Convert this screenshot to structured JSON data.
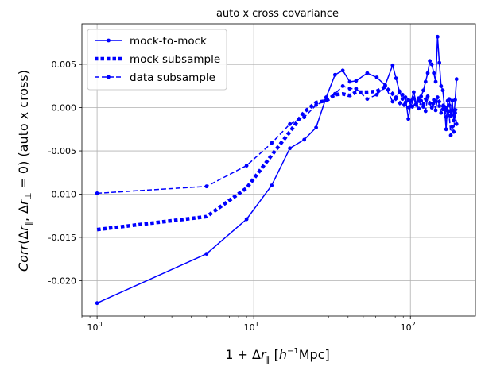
{
  "chart_data": {
    "type": "line",
    "title": "auto x cross covariance",
    "xlabel": "1 + Δr∥ [h⁻¹Mpc]",
    "ylabel": "Corr(Δr∥, Δr⊥ = 0) (auto x  cross)",
    "xscale": "log",
    "xlim": [
      0.8,
      260
    ],
    "ylim": [
      -0.0241,
      0.0097
    ],
    "grid": true,
    "legend_position": "upper-left",
    "x_ticks": [
      {
        "value": 1,
        "base": "10",
        "exp": "0"
      },
      {
        "value": 10,
        "base": "10",
        "exp": "1"
      },
      {
        "value": 100,
        "base": "10",
        "exp": "2"
      }
    ],
    "y_ticks": [
      {
        "value": -0.02,
        "label": "-0.020"
      },
      {
        "value": -0.015,
        "label": "-0.015"
      },
      {
        "value": -0.01,
        "label": "-0.010"
      },
      {
        "value": -0.005,
        "label": "-0.005"
      },
      {
        "value": 0.0,
        "label": "0.000"
      },
      {
        "value": 0.005,
        "label": "0.005"
      }
    ],
    "series": [
      {
        "name": "mock-to-mock",
        "color": "#0000ff",
        "style": "solid-dot",
        "x": [
          1,
          5,
          9,
          13,
          17,
          21,
          25,
          29,
          33,
          37,
          41,
          45,
          53,
          61,
          69,
          77,
          81,
          85,
          89,
          93,
          97,
          101,
          105,
          109,
          113,
          117,
          121,
          125,
          129,
          133,
          137,
          141,
          145,
          149,
          153,
          157,
          161,
          165,
          169,
          173,
          177,
          181,
          185,
          189,
          193,
          197
        ],
        "y": [
          -0.0226,
          -0.0169,
          -0.0129,
          -0.009,
          -0.0047,
          -0.0037,
          -0.0023,
          0.0012,
          0.0038,
          0.0043,
          0.003,
          0.0031,
          0.004,
          0.0035,
          0.0026,
          0.0049,
          0.0034,
          0.0019,
          0.001,
          0.0012,
          -0.0013,
          0.0008,
          0.0018,
          0.0005,
          0.0011,
          0.0013,
          0.002,
          0.003,
          0.004,
          0.0054,
          0.005,
          0.004,
          0.003,
          0.0082,
          0.0052,
          0.0025,
          0.002,
          0.0001,
          -0.0025,
          0.0008,
          0.001,
          -0.0009,
          0.0008,
          -0.0015,
          0.0009,
          0.0033
        ]
      },
      {
        "name": "mock subsample",
        "color": "#0000ff",
        "style": "dotted-thick",
        "x": [
          1,
          5,
          9,
          13,
          17,
          21,
          25,
          29,
          33,
          37,
          41,
          45,
          53,
          61,
          69,
          77,
          81,
          85,
          89,
          93,
          97,
          101,
          105,
          109,
          113,
          117,
          121,
          125,
          129,
          133,
          137,
          141,
          145,
          149,
          153,
          157,
          161,
          165,
          169,
          173,
          177,
          181,
          185,
          189,
          193,
          197
        ],
        "y": [
          -0.0141,
          -0.0126,
          -0.0093,
          -0.0055,
          -0.0028,
          -0.0005,
          0.0006,
          0.0008,
          0.0015,
          0.0016,
          0.0014,
          0.0018,
          0.0018,
          0.0019,
          0.0024,
          0.0016,
          0.001,
          0.0006,
          0.0002,
          0.0004,
          0.0001,
          -0.0002,
          0.0005,
          0.0003,
          0.0008,
          0.0006,
          0.0004,
          0.001,
          0.0006,
          0.0005,
          0.0008,
          0.0003,
          0.0006,
          0.001,
          0.0007,
          0.0004,
          0.0002,
          0.0004,
          -0.0005,
          0.0001,
          0.0003,
          -0.001,
          -0.0005,
          0.0,
          -0.0003,
          0.0002
        ]
      },
      {
        "name": "data subsample",
        "color": "#0000ff",
        "style": "dashed-dot",
        "x": [
          1,
          5,
          9,
          13,
          17,
          21,
          25,
          29,
          33,
          37,
          41,
          45,
          53,
          61,
          69,
          77,
          81,
          85,
          89,
          93,
          97,
          101,
          105,
          109,
          113,
          117,
          121,
          125,
          129,
          133,
          137,
          141,
          145,
          149,
          153,
          157,
          161,
          165,
          169,
          173,
          177,
          181,
          185,
          189,
          193,
          197
        ],
        "y": [
          -0.0099,
          -0.0091,
          -0.0067,
          -0.0041,
          -0.0019,
          -0.0011,
          0.0003,
          0.0009,
          0.0016,
          0.0025,
          0.0022,
          0.0022,
          0.001,
          0.0015,
          0.0025,
          0.0007,
          0.0012,
          0.0018,
          0.0015,
          0.0006,
          0.0009,
          0.0002,
          0.0011,
          0.0003,
          -0.0001,
          0.0008,
          0.0001,
          -0.0004,
          0.0013,
          0.0005,
          0.0,
          0.0009,
          -0.0003,
          0.0012,
          0.0002,
          -0.0006,
          -0.0002,
          0.0001,
          -0.0011,
          -0.0004,
          -0.0009,
          -0.0032,
          -0.0022,
          -0.0028,
          -0.0006,
          -0.0019
        ]
      }
    ]
  }
}
